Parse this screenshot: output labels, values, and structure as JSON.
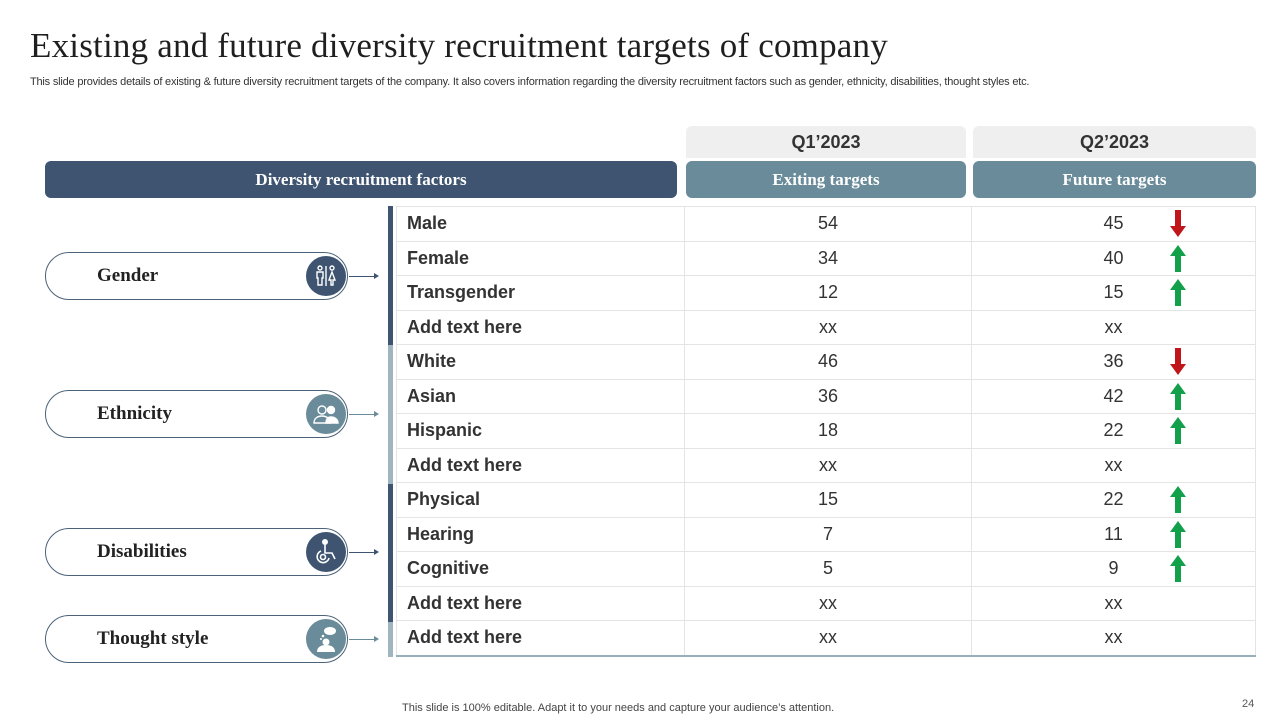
{
  "title": "Existing and future diversity recruitment targets of company",
  "subtitle": "This slide provides details of existing & future diversity recruitment targets of the company. It also covers information regarding the diversity recruitment factors such as gender, ethnicity, disabilities, thought styles etc.",
  "quarters": {
    "q1": "Q1’2023",
    "q2": "Q2’2023"
  },
  "headers": {
    "factors": "Diversity recruitment factors",
    "existing": "Exiting targets",
    "future": "Future targets"
  },
  "categories": [
    {
      "name": "Gender",
      "icon": "restroom-icon"
    },
    {
      "name": "Ethnicity",
      "icon": "people-group-icon"
    },
    {
      "name": "Disabilities",
      "icon": "wheelchair-icon"
    },
    {
      "name": "Thought style",
      "icon": "thinking-person-icon"
    }
  ],
  "rows": [
    {
      "label": "Male",
      "existing": "54",
      "future": "45",
      "trend": "down"
    },
    {
      "label": "Female",
      "existing": "34",
      "future": "40",
      "trend": "up"
    },
    {
      "label": "Transgender",
      "existing": "12",
      "future": "15",
      "trend": "up"
    },
    {
      "label": "Add text here",
      "existing": "xx",
      "future": "xx",
      "trend": "none"
    },
    {
      "label": "White",
      "existing": "46",
      "future": "36",
      "trend": "down"
    },
    {
      "label": "Asian",
      "existing": "36",
      "future": "42",
      "trend": "up"
    },
    {
      "label": "Hispanic",
      "existing": "18",
      "future": "22",
      "trend": "up"
    },
    {
      "label": "Add text here",
      "existing": "xx",
      "future": "xx",
      "trend": "none"
    },
    {
      "label": "Physical",
      "existing": "15",
      "future": "22",
      "trend": "up"
    },
    {
      "label": "Hearing",
      "existing": "7",
      "future": "11",
      "trend": "up"
    },
    {
      "label": "Cognitive",
      "existing": "5",
      "future": "9",
      "trend": "up"
    },
    {
      "label": "Add text here",
      "existing": "xx",
      "future": "xx",
      "trend": "none"
    },
    {
      "label": "Add text here",
      "existing": "xx",
      "future": "xx",
      "trend": "none"
    }
  ],
  "colors": {
    "dark": "#3e5470",
    "teal": "#6a8b99",
    "up": "#13a04b",
    "down": "#c0161b"
  },
  "footer": "This slide is 100% editable. Adapt it to your needs and capture your audience’s attention.",
  "page_number": "24"
}
